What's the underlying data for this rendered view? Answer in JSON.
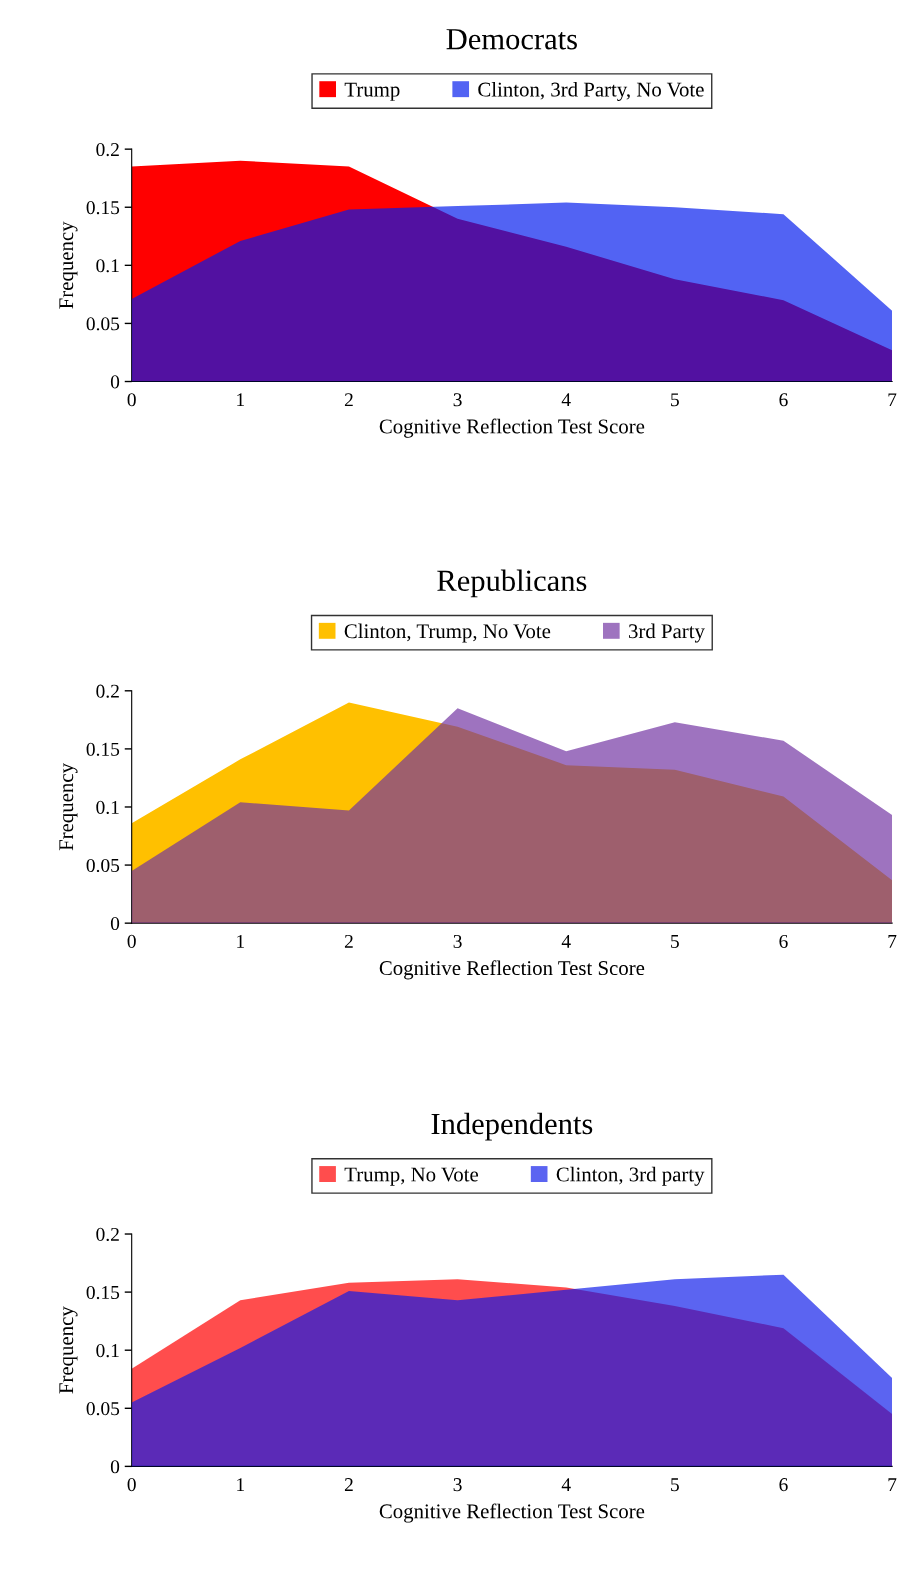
{
  "chart_data": [
    {
      "type": "area",
      "title": "Democrats",
      "xlabel": "Cognitive Reflection Test Score",
      "ylabel": "Frequency",
      "x": [
        0,
        1,
        2,
        3,
        4,
        5,
        6,
        7
      ],
      "xlim": [
        0,
        7
      ],
      "xticks": [
        0,
        1,
        2,
        3,
        4,
        5,
        6,
        7
      ],
      "ylim": [
        0,
        0.2
      ],
      "yticks": [
        0,
        0.05,
        0.1,
        0.15,
        0.2
      ],
      "legend": "top",
      "grid": false,
      "series": [
        {
          "name": "Trump",
          "color": "#ff0000",
          "values": [
            0.185,
            0.19,
            0.185,
            0.14,
            0.116,
            0.088,
            0.07,
            0.027
          ]
        },
        {
          "name": "Clinton, 3rd Party, No Vote",
          "color": "#0019ee",
          "values": [
            0.071,
            0.121,
            0.148,
            0.151,
            0.154,
            0.15,
            0.144,
            0.061
          ]
        }
      ]
    },
    {
      "type": "area",
      "title": "Republicans",
      "xlabel": "Cognitive Reflection Test Score",
      "ylabel": "Frequency",
      "x": [
        0,
        1,
        2,
        3,
        4,
        5,
        6,
        7
      ],
      "xlim": [
        0,
        7
      ],
      "xticks": [
        0,
        1,
        2,
        3,
        4,
        5,
        6,
        7
      ],
      "ylim": [
        0,
        0.2
      ],
      "yticks": [
        0,
        0.05,
        0.1,
        0.15,
        0.2
      ],
      "legend": "top",
      "grid": false,
      "series": [
        {
          "name": "Clinton, Trump, No Vote",
          "color": "#ffc000",
          "values": [
            0.086,
            0.141,
            0.19,
            0.169,
            0.136,
            0.132,
            0.109,
            0.037
          ]
        },
        {
          "name": "3rd Party",
          "color": "#7030a0",
          "values": [
            0.045,
            0.104,
            0.097,
            0.185,
            0.148,
            0.173,
            0.157,
            0.093
          ]
        }
      ]
    },
    {
      "type": "area",
      "title": "Independents",
      "xlabel": "Cognitive Reflection Test Score",
      "ylabel": "Frequency",
      "x": [
        0,
        1,
        2,
        3,
        4,
        5,
        6,
        7
      ],
      "xlim": [
        0,
        7
      ],
      "xticks": [
        0,
        1,
        2,
        3,
        4,
        5,
        6,
        7
      ],
      "ylim": [
        0,
        0.2
      ],
      "yticks": [
        0,
        0.05,
        0.1,
        0.15,
        0.2
      ],
      "legend": "top",
      "grid": false,
      "series": [
        {
          "name": "Trump, No Vote",
          "color": "#ff4d4d",
          "values": [
            0.084,
            0.143,
            0.158,
            0.161,
            0.154,
            0.138,
            0.119,
            0.045
          ]
        },
        {
          "name": "Clinton, 3rd party",
          "color": "#0d1beb",
          "values": [
            0.055,
            0.102,
            0.151,
            0.143,
            0.152,
            0.161,
            0.165,
            0.076
          ]
        }
      ]
    }
  ]
}
